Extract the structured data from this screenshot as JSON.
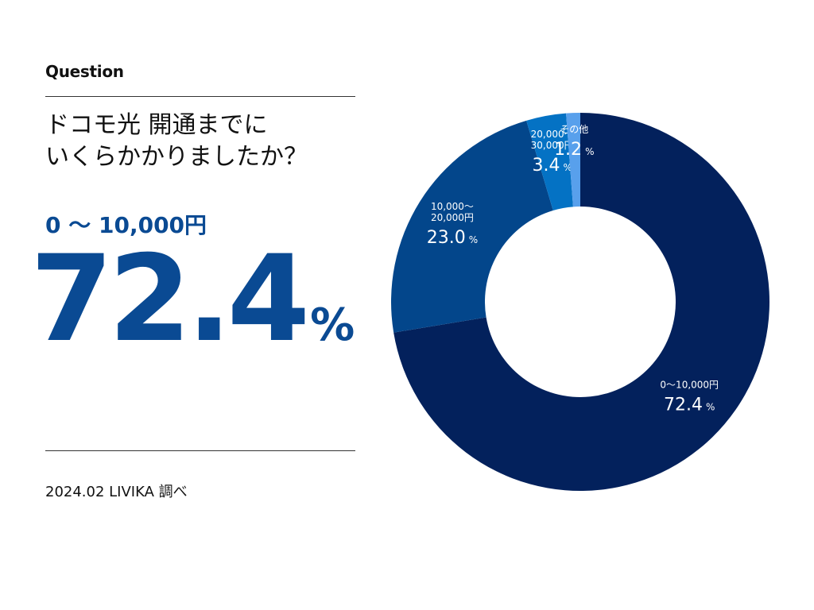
{
  "header": {
    "label": "Question",
    "question_line1": "ドコモ光 開通までに",
    "question_line2": "いくらかかりましたか？"
  },
  "highlight": {
    "category": "0 ～ 10,000円",
    "value": "72.4",
    "unit": "%"
  },
  "footer": {
    "source": "2024.02 LIVIKA 調べ"
  },
  "chart_data": {
    "type": "pie",
    "donut": true,
    "unit": "%",
    "categories": [
      "0～10,000円",
      "10,000～20,000円",
      "20,000～30,000円",
      "その他"
    ],
    "label_lines": [
      [
        "0～10,000円"
      ],
      [
        "10,000～",
        "20,000円"
      ],
      [
        "20,000～",
        "30,000円"
      ],
      [
        "その他"
      ]
    ],
    "values": [
      72.4,
      23.0,
      3.4,
      1.2
    ],
    "value_labels": [
      "72.4",
      "23.0",
      "3.4",
      "1.2"
    ],
    "colors": [
      "#03215c",
      "#03468b",
      "#0472c4",
      "#58a0ec"
    ]
  }
}
